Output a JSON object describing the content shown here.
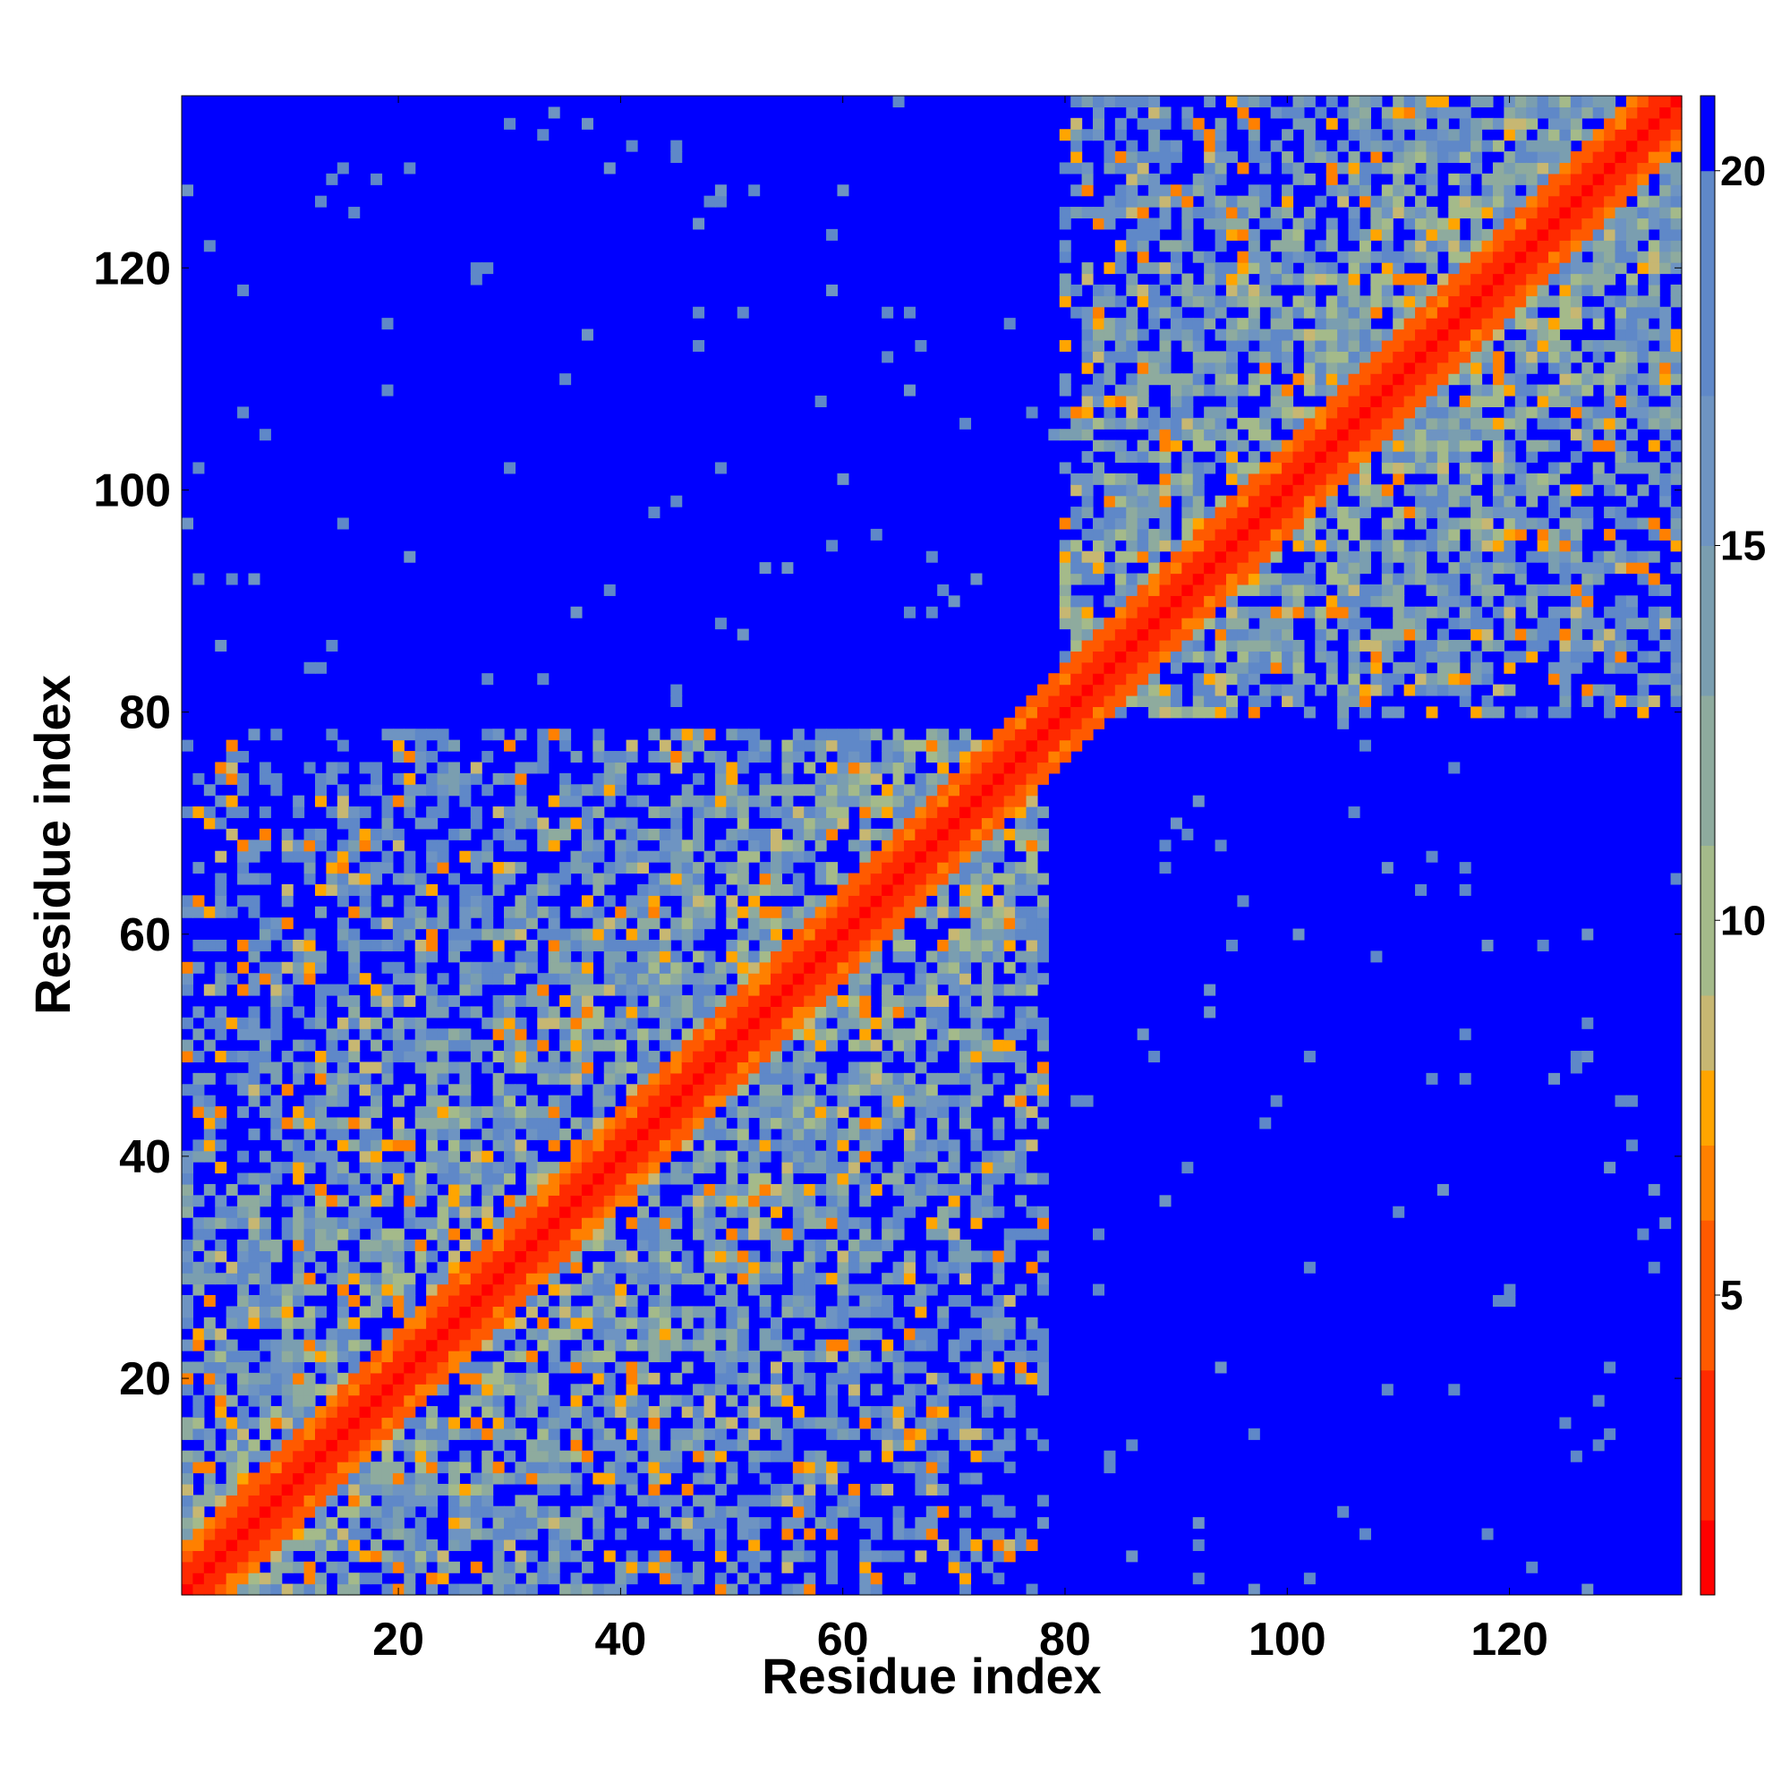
{
  "chart_data": {
    "type": "heatmap",
    "title": "",
    "xlabel": "Residue index",
    "ylabel": "Residue index",
    "n_residues": 135,
    "xlim": [
      1,
      135
    ],
    "ylim": [
      1,
      135
    ],
    "x_ticks": [
      20,
      40,
      60,
      80,
      100,
      120
    ],
    "y_ticks": [
      20,
      40,
      60,
      80,
      100,
      120
    ],
    "colorbar": {
      "range": [
        1,
        21
      ],
      "ticks": [
        5,
        10,
        15,
        20
      ],
      "color_levels": [
        {
          "min": 0,
          "max": 2,
          "color": "#ff0000"
        },
        {
          "min": 2,
          "max": 4,
          "color": "#ff2a00"
        },
        {
          "min": 4,
          "max": 6,
          "color": "#ff5a00"
        },
        {
          "min": 6,
          "max": 7,
          "color": "#ff8000"
        },
        {
          "min": 7,
          "max": 8,
          "color": "#ffa500"
        },
        {
          "min": 8,
          "max": 9,
          "color": "#c7b772"
        },
        {
          "min": 9,
          "max": 11,
          "color": "#a4ba8a"
        },
        {
          "min": 11,
          "max": 13,
          "color": "#8eab9e"
        },
        {
          "min": 13,
          "max": 15,
          "color": "#7a9eb0"
        },
        {
          "min": 15,
          "max": 17,
          "color": "#6e94c2"
        },
        {
          "min": 17,
          "max": 20,
          "color": "#5f88c8"
        },
        {
          "min": 20,
          "max": 99,
          "color": "#0000ff"
        }
      ]
    },
    "domains": [
      {
        "start": 1,
        "end": 78
      },
      {
        "start": 80,
        "end": 135
      }
    ]
  }
}
